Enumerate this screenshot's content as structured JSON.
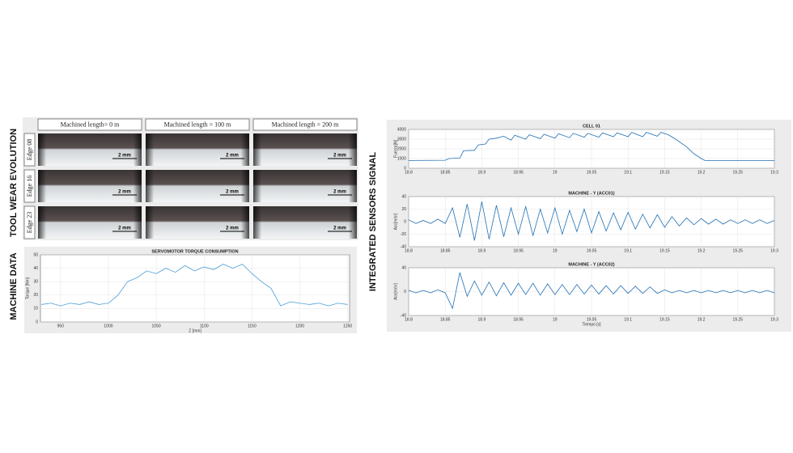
{
  "left_title": "TOOL WEAR EVOLUTION",
  "left_bottom_title": "MACHINE DATA",
  "right_title": "INTEGRATED SENSORS SIGNAL",
  "columns": [
    "Machined length= 0 m",
    "Machined length = 100 m",
    "Machined length = 200 m"
  ],
  "rows": [
    "Edge 08",
    "Edge 16",
    "Edge 23"
  ],
  "scale_bars": [
    [
      "2 mm",
      "2 mm",
      "2 mm"
    ],
    [
      "2 mm",
      "2 mm",
      "2 mm"
    ],
    [
      "2 mm",
      "2 mm",
      "2 mm"
    ]
  ],
  "chart_data": [
    {
      "type": "line",
      "title": "SERVOMOTOR TORQUE CONSUMPTION",
      "xlabel": "Z [mm]",
      "ylabel": "Torque [Nm]",
      "color": "#4a9fd6",
      "x": [
        930,
        940,
        950,
        960,
        970,
        980,
        990,
        1000,
        1010,
        1020,
        1030,
        1040,
        1050,
        1060,
        1070,
        1080,
        1090,
        1100,
        1110,
        1120,
        1130,
        1140,
        1150,
        1160,
        1170,
        1180,
        1190,
        1200,
        1210,
        1220,
        1230,
        1240,
        1250
      ],
      "values": [
        13,
        14,
        12,
        14,
        13,
        15,
        13,
        14,
        20,
        30,
        33,
        38,
        36,
        40,
        37,
        42,
        38,
        41,
        39,
        43,
        40,
        43,
        36,
        30,
        25,
        12,
        15,
        14,
        13,
        14,
        12,
        14,
        13
      ],
      "xlim": [
        929,
        1252
      ],
      "xticks": [
        950,
        1000,
        1050,
        1100,
        1150,
        1200,
        1250
      ],
      "ylim": [
        0,
        50
      ],
      "yticks": [
        0,
        10,
        20,
        30,
        40,
        50
      ],
      "grid": true
    },
    {
      "type": "line",
      "title": "CELL 01",
      "ylabel": "Fuerza[N]",
      "color": "#1f6fb4",
      "x": [
        18.8,
        18.85,
        18.855,
        18.87,
        18.875,
        18.89,
        18.895,
        18.905,
        18.91,
        18.92,
        18.93,
        18.94,
        18.945,
        18.96,
        18.965,
        18.98,
        18.985,
        19.0,
        19.005,
        19.02,
        19.025,
        19.04,
        19.045,
        19.06,
        19.065,
        19.08,
        19.085,
        19.1,
        19.105,
        19.12,
        19.125,
        19.14,
        19.145,
        19.155,
        19.165,
        19.18,
        19.19,
        19.2,
        19.205,
        19.3
      ],
      "values": [
        800,
        820,
        1000,
        1050,
        1800,
        1850,
        2400,
        2500,
        3000,
        3100,
        3300,
        2900,
        3400,
        3000,
        3450,
        3050,
        3500,
        3100,
        3550,
        3150,
        3600,
        3200,
        3600,
        3200,
        3650,
        3250,
        3650,
        3250,
        3700,
        3250,
        3700,
        3300,
        3700,
        3450,
        3000,
        2200,
        1500,
        1000,
        800,
        800
      ],
      "xlim": [
        18.8,
        19.3
      ],
      "xticks": [
        18.8,
        18.85,
        18.9,
        18.95,
        19,
        19.05,
        19.1,
        19.15,
        19.2,
        19.25,
        19.3
      ],
      "ylim": [
        0,
        4000
      ],
      "yticks": [
        0,
        1000,
        2000,
        3000,
        4000
      ],
      "grid": true
    },
    {
      "type": "line",
      "title": "MACHINE - Y (ACC01)",
      "ylabel": "Acc[m/s²]",
      "color": "#1f6fb4",
      "x": [
        18.8,
        18.81,
        18.82,
        18.83,
        18.84,
        18.85,
        18.86,
        18.87,
        18.88,
        18.89,
        18.9,
        18.91,
        18.92,
        18.93,
        18.94,
        18.95,
        18.96,
        18.97,
        18.98,
        18.99,
        19.0,
        19.01,
        19.02,
        19.03,
        19.04,
        19.05,
        19.06,
        19.07,
        19.08,
        19.09,
        19.1,
        19.11,
        19.12,
        19.13,
        19.14,
        19.15,
        19.16,
        19.17,
        19.18,
        19.19,
        19.2,
        19.21,
        19.22,
        19.23,
        19.24,
        19.25,
        19.26,
        19.27,
        19.28,
        19.29,
        19.3
      ],
      "values": [
        3,
        -3,
        2,
        -3,
        4,
        -3,
        22,
        -25,
        28,
        -30,
        32,
        -28,
        26,
        -24,
        22,
        -20,
        24,
        -22,
        20,
        -18,
        22,
        -20,
        18,
        -16,
        20,
        -18,
        16,
        -15,
        14,
        -13,
        15,
        -12,
        12,
        -10,
        11,
        -9,
        8,
        -7,
        6,
        -5,
        5,
        -4,
        4,
        -4,
        3,
        -3,
        3,
        -3,
        3,
        -3,
        2
      ],
      "xlim": [
        18.8,
        19.3
      ],
      "xticks": [
        18.8,
        18.85,
        18.9,
        18.95,
        19,
        19.05,
        19.1,
        19.15,
        19.2,
        19.25,
        19.3
      ],
      "ylim": [
        -40,
        40
      ],
      "yticks": [
        -40,
        -20,
        0,
        20,
        40
      ],
      "grid": true
    },
    {
      "type": "line",
      "title": "MACHINE - Y (ACC02)",
      "xlabel": "Tiempo [s]",
      "ylabel": "Acc[m/s²]",
      "color": "#1f6fb4",
      "x": [
        18.8,
        18.81,
        18.82,
        18.83,
        18.84,
        18.85,
        18.86,
        18.87,
        18.88,
        18.89,
        18.9,
        18.91,
        18.92,
        18.93,
        18.94,
        18.95,
        18.96,
        18.97,
        18.98,
        18.99,
        19.0,
        19.01,
        19.02,
        19.03,
        19.04,
        19.05,
        19.06,
        19.07,
        19.08,
        19.09,
        19.1,
        19.11,
        19.12,
        19.13,
        19.14,
        19.15,
        19.16,
        19.17,
        19.18,
        19.19,
        19.2,
        19.21,
        19.22,
        19.23,
        19.24,
        19.25,
        19.26,
        19.27,
        19.28,
        19.29,
        19.3
      ],
      "values": [
        2,
        -2,
        2,
        -2,
        3,
        -2,
        -28,
        32,
        -8,
        18,
        -6,
        16,
        -7,
        15,
        -6,
        14,
        -5,
        14,
        -6,
        13,
        -5,
        12,
        -5,
        12,
        -4,
        11,
        -4,
        10,
        -4,
        10,
        -3,
        9,
        -3,
        8,
        -3,
        3,
        -2,
        2,
        -2,
        2,
        -2,
        2,
        -2,
        2,
        -2,
        2,
        -2,
        2,
        -2,
        2,
        -2
      ],
      "xlim": [
        18.8,
        19.3
      ],
      "xticks": [
        18.8,
        18.85,
        18.9,
        18.95,
        19,
        19.05,
        19.1,
        19.15,
        19.2,
        19.25,
        19.3
      ],
      "ylim": [
        -40,
        40
      ],
      "yticks": [
        -40,
        0,
        40
      ],
      "grid": true
    }
  ]
}
